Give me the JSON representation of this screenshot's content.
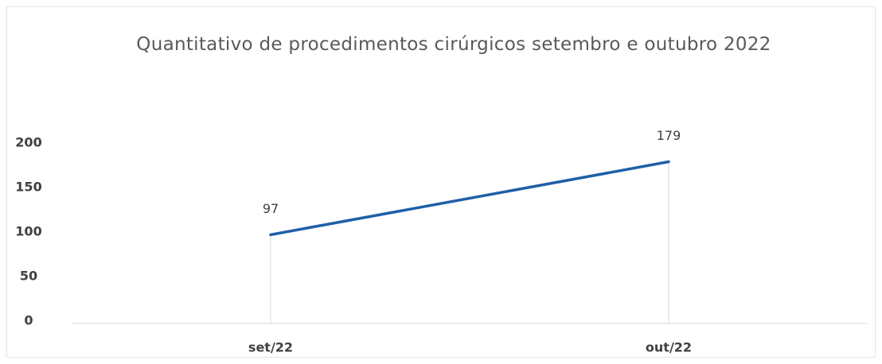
{
  "chart_data": {
    "type": "line",
    "title": "Quantitativo de procedimentos cirúrgicos setembro e outubro 2022",
    "categories": [
      "set/22",
      "out/22"
    ],
    "values": [
      97,
      179
    ],
    "color": "#1f5fa8",
    "ylim": [
      0,
      200
    ],
    "yticks": [
      0,
      50,
      100,
      150,
      200
    ],
    "grid": false,
    "drop_lines": true
  }
}
